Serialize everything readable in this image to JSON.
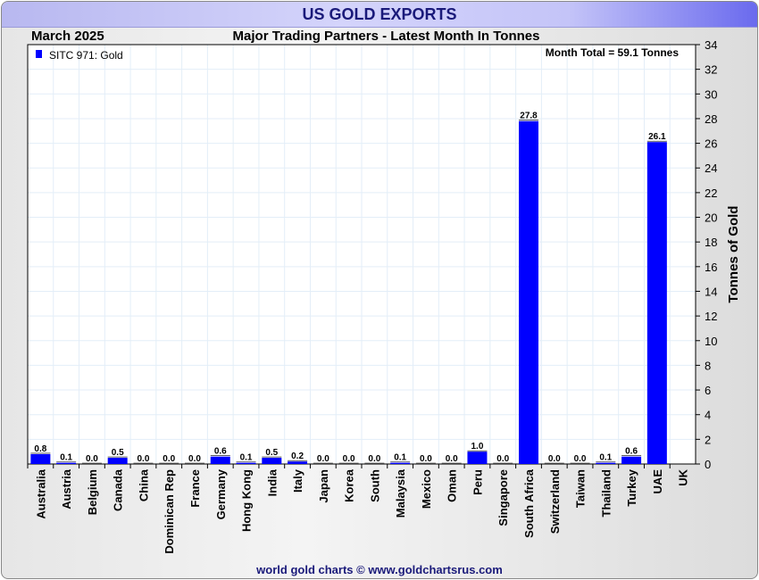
{
  "header": {
    "title": "US GOLD EXPORTS",
    "date": "March 2025",
    "subtitle": "Major Trading Partners - Latest Month In Tonnes"
  },
  "footer": "world gold charts © www.goldchartsrus.com",
  "colors": {
    "bar": "#0000ff",
    "grid": "#e3eef8"
  },
  "chart_data": {
    "type": "bar",
    "title": "Major Trading Partners - Latest Month In Tonnes",
    "ylabel": "Tonnes of Gold",
    "xlabel": "",
    "ylim": [
      0,
      34
    ],
    "yticks": [
      0,
      2,
      4,
      6,
      8,
      10,
      12,
      14,
      16,
      18,
      20,
      22,
      24,
      26,
      28,
      30,
      32,
      34
    ],
    "legend": {
      "label": "SITC 971: Gold",
      "position": "top-left"
    },
    "annotation": "Month Total = 59.1 Tonnes",
    "categories": [
      "Australia",
      "Austria",
      "Belgium",
      "Canada",
      "China",
      "Dominican Rep",
      "France",
      "Germany",
      "Hong Kong",
      "India",
      "Italy",
      "Japan",
      "Korea",
      "South",
      "Malaysia",
      "Mexico",
      "Oman",
      "Peru",
      "Singapore",
      "South Africa",
      "Switzerland",
      "Taiwan",
      "Thailand",
      "Turkey",
      "UAE",
      "UK"
    ],
    "values": [
      0.8,
      0.1,
      0.0,
      0.5,
      0.0,
      0.0,
      0.0,
      0.6,
      0.1,
      0.5,
      0.2,
      0.0,
      0.0,
      0.0,
      0.1,
      0.0,
      0.0,
      1.0,
      0.0,
      27.8,
      0.0,
      0.0,
      0.1,
      0.6,
      26.1,
      null
    ],
    "grid": true
  }
}
